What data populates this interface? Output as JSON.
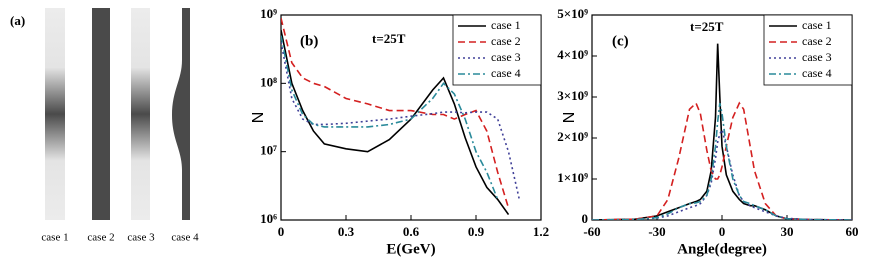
{
  "panel_a": {
    "label": "(a)",
    "cases": [
      "case 1",
      "case 2",
      "case 3",
      "case 4"
    ]
  },
  "chart_data": [
    {
      "type": "line",
      "panel_label": "(b)",
      "annotation": "t=25T",
      "xlabel": "E(GeV)",
      "ylabel": "N",
      "log_y": true,
      "legend": "upper right",
      "xlim": [
        0,
        1.2
      ],
      "xticks": [
        0,
        0.3,
        0.6,
        0.9,
        1.2
      ],
      "ylim": [
        1000000.0,
        1000000000.0
      ],
      "yticks": [
        {
          "value": 1000000.0,
          "label": "10⁶"
        },
        {
          "value": 10000000.0,
          "label": "10⁷"
        },
        {
          "value": 100000000.0,
          "label": "10⁸"
        },
        {
          "value": 1000000000.0,
          "label": "10⁹"
        }
      ],
      "x": [
        0,
        0.05,
        0.1,
        0.15,
        0.2,
        0.3,
        0.4,
        0.5,
        0.6,
        0.7,
        0.75,
        0.8,
        0.85,
        0.9,
        0.95,
        1.0,
        1.05,
        1.1
      ],
      "series": [
        {
          "name": "case 1",
          "color": "#000000",
          "dash": "solid",
          "values": [
            600000000.0,
            100000000.0,
            40000000.0,
            20000000.0,
            13000000.0,
            11000000.0,
            10000000.0,
            15000000.0,
            30000000.0,
            80000000.0,
            120000000.0,
            50000000.0,
            16000000.0,
            6000000.0,
            3000000.0,
            2000000.0,
            1200000.0,
            null
          ]
        },
        {
          "name": "case 2",
          "color": "#d42020",
          "dash": "dashed",
          "values": [
            900000000.0,
            200000000.0,
            120000000.0,
            100000000.0,
            90000000.0,
            60000000.0,
            50000000.0,
            40000000.0,
            40000000.0,
            35000000.0,
            35000000.0,
            30000000.0,
            35000000.0,
            40000000.0,
            20000000.0,
            5000000.0,
            1500000.0,
            null
          ]
        },
        {
          "name": "case 3",
          "color": "#404098",
          "dash": "dotted",
          "values": [
            400000000.0,
            60000000.0,
            30000000.0,
            25000000.0,
            25000000.0,
            26000000.0,
            28000000.0,
            30000000.0,
            33000000.0,
            36000000.0,
            38000000.0,
            38000000.0,
            37000000.0,
            38000000.0,
            38000000.0,
            30000000.0,
            10000000.0,
            2000000.0
          ]
        },
        {
          "name": "case 4",
          "color": "#2a8a9a",
          "dash": "dashdot",
          "values": [
            500000000.0,
            80000000.0,
            35000000.0,
            25000000.0,
            23000000.0,
            23000000.0,
            23000000.0,
            25000000.0,
            30000000.0,
            60000000.0,
            100000000.0,
            70000000.0,
            30000000.0,
            10000000.0,
            5000000.0,
            2000000.0,
            null,
            null
          ]
        }
      ]
    },
    {
      "type": "line",
      "panel_label": "(c)",
      "annotation": "t=25T",
      "xlabel": "Angle(degree)",
      "ylabel": "N",
      "log_y": false,
      "legend": "upper right",
      "xlim": [
        -60,
        60
      ],
      "xticks": [
        -60,
        -30,
        0,
        30,
        60
      ],
      "ylim": [
        0,
        5000000000.0
      ],
      "yticks": [
        0,
        {
          "value": 1000000000.0,
          "label": "1×10⁹"
        },
        {
          "value": 2000000000.0,
          "label": "2×10⁹"
        },
        {
          "value": 3000000000.0,
          "label": "3×10⁹"
        },
        {
          "value": 4000000000.0,
          "label": "4×10⁹"
        },
        {
          "value": 5000000000.0,
          "label": "5×10⁹"
        }
      ],
      "x": [
        -60,
        -40,
        -30,
        -25,
        -20,
        -15,
        -12,
        -10,
        -7,
        -5,
        -3,
        -2,
        -1,
        0,
        2,
        5,
        8,
        10,
        13,
        15,
        20,
        25,
        30,
        40,
        60
      ],
      "series": [
        {
          "name": "case 1",
          "color": "#000000",
          "dash": "solid",
          "values": [
            0,
            20000000.0,
            100000000.0,
            200000000.0,
            300000000.0,
            400000000.0,
            450000000.0,
            500000000.0,
            700000000.0,
            1200000000.0,
            2500000000.0,
            4300000000.0,
            3000000000.0,
            1800000000.0,
            1100000000.0,
            700000000.0,
            500000000.0,
            400000000.0,
            350000000.0,
            350000000.0,
            250000000.0,
            100000000.0,
            30000000.0,
            10000000.0,
            0
          ]
        },
        {
          "name": "case 2",
          "color": "#d42020",
          "dash": "dashed",
          "values": [
            0,
            20000000.0,
            100000000.0,
            500000000.0,
            1500000000.0,
            2700000000.0,
            2850000000.0,
            2600000000.0,
            1700000000.0,
            1200000000.0,
            1000000000.0,
            1000000000.0,
            1100000000.0,
            1300000000.0,
            1800000000.0,
            2500000000.0,
            2850000000.0,
            2700000000.0,
            1800000000.0,
            1200000000.0,
            400000000.0,
            100000000.0,
            30000000.0,
            10000000.0,
            0
          ]
        },
        {
          "name": "case 3",
          "color": "#404098",
          "dash": "dotted",
          "values": [
            0,
            10000000.0,
            50000000.0,
            100000000.0,
            200000000.0,
            300000000.0,
            350000000.0,
            400000000.0,
            600000000.0,
            900000000.0,
            1500000000.0,
            1900000000.0,
            2100000000.0,
            2200000000.0,
            1800000000.0,
            1100000000.0,
            600000000.0,
            450000000.0,
            350000000.0,
            300000000.0,
            200000000.0,
            100000000.0,
            40000000.0,
            10000000.0,
            0
          ]
        },
        {
          "name": "case 4",
          "color": "#2a8a9a",
          "dash": "dashdot",
          "values": [
            0,
            10000000.0,
            60000000.0,
            150000000.0,
            300000000.0,
            400000000.0,
            420000000.0,
            450000000.0,
            600000000.0,
            1000000000.0,
            1800000000.0,
            2400000000.0,
            2850000000.0,
            2600000000.0,
            1800000000.0,
            1000000000.0,
            600000000.0,
            450000000.0,
            400000000.0,
            350000000.0,
            250000000.0,
            100000000.0,
            30000000.0,
            10000000.0,
            0
          ]
        }
      ]
    }
  ]
}
